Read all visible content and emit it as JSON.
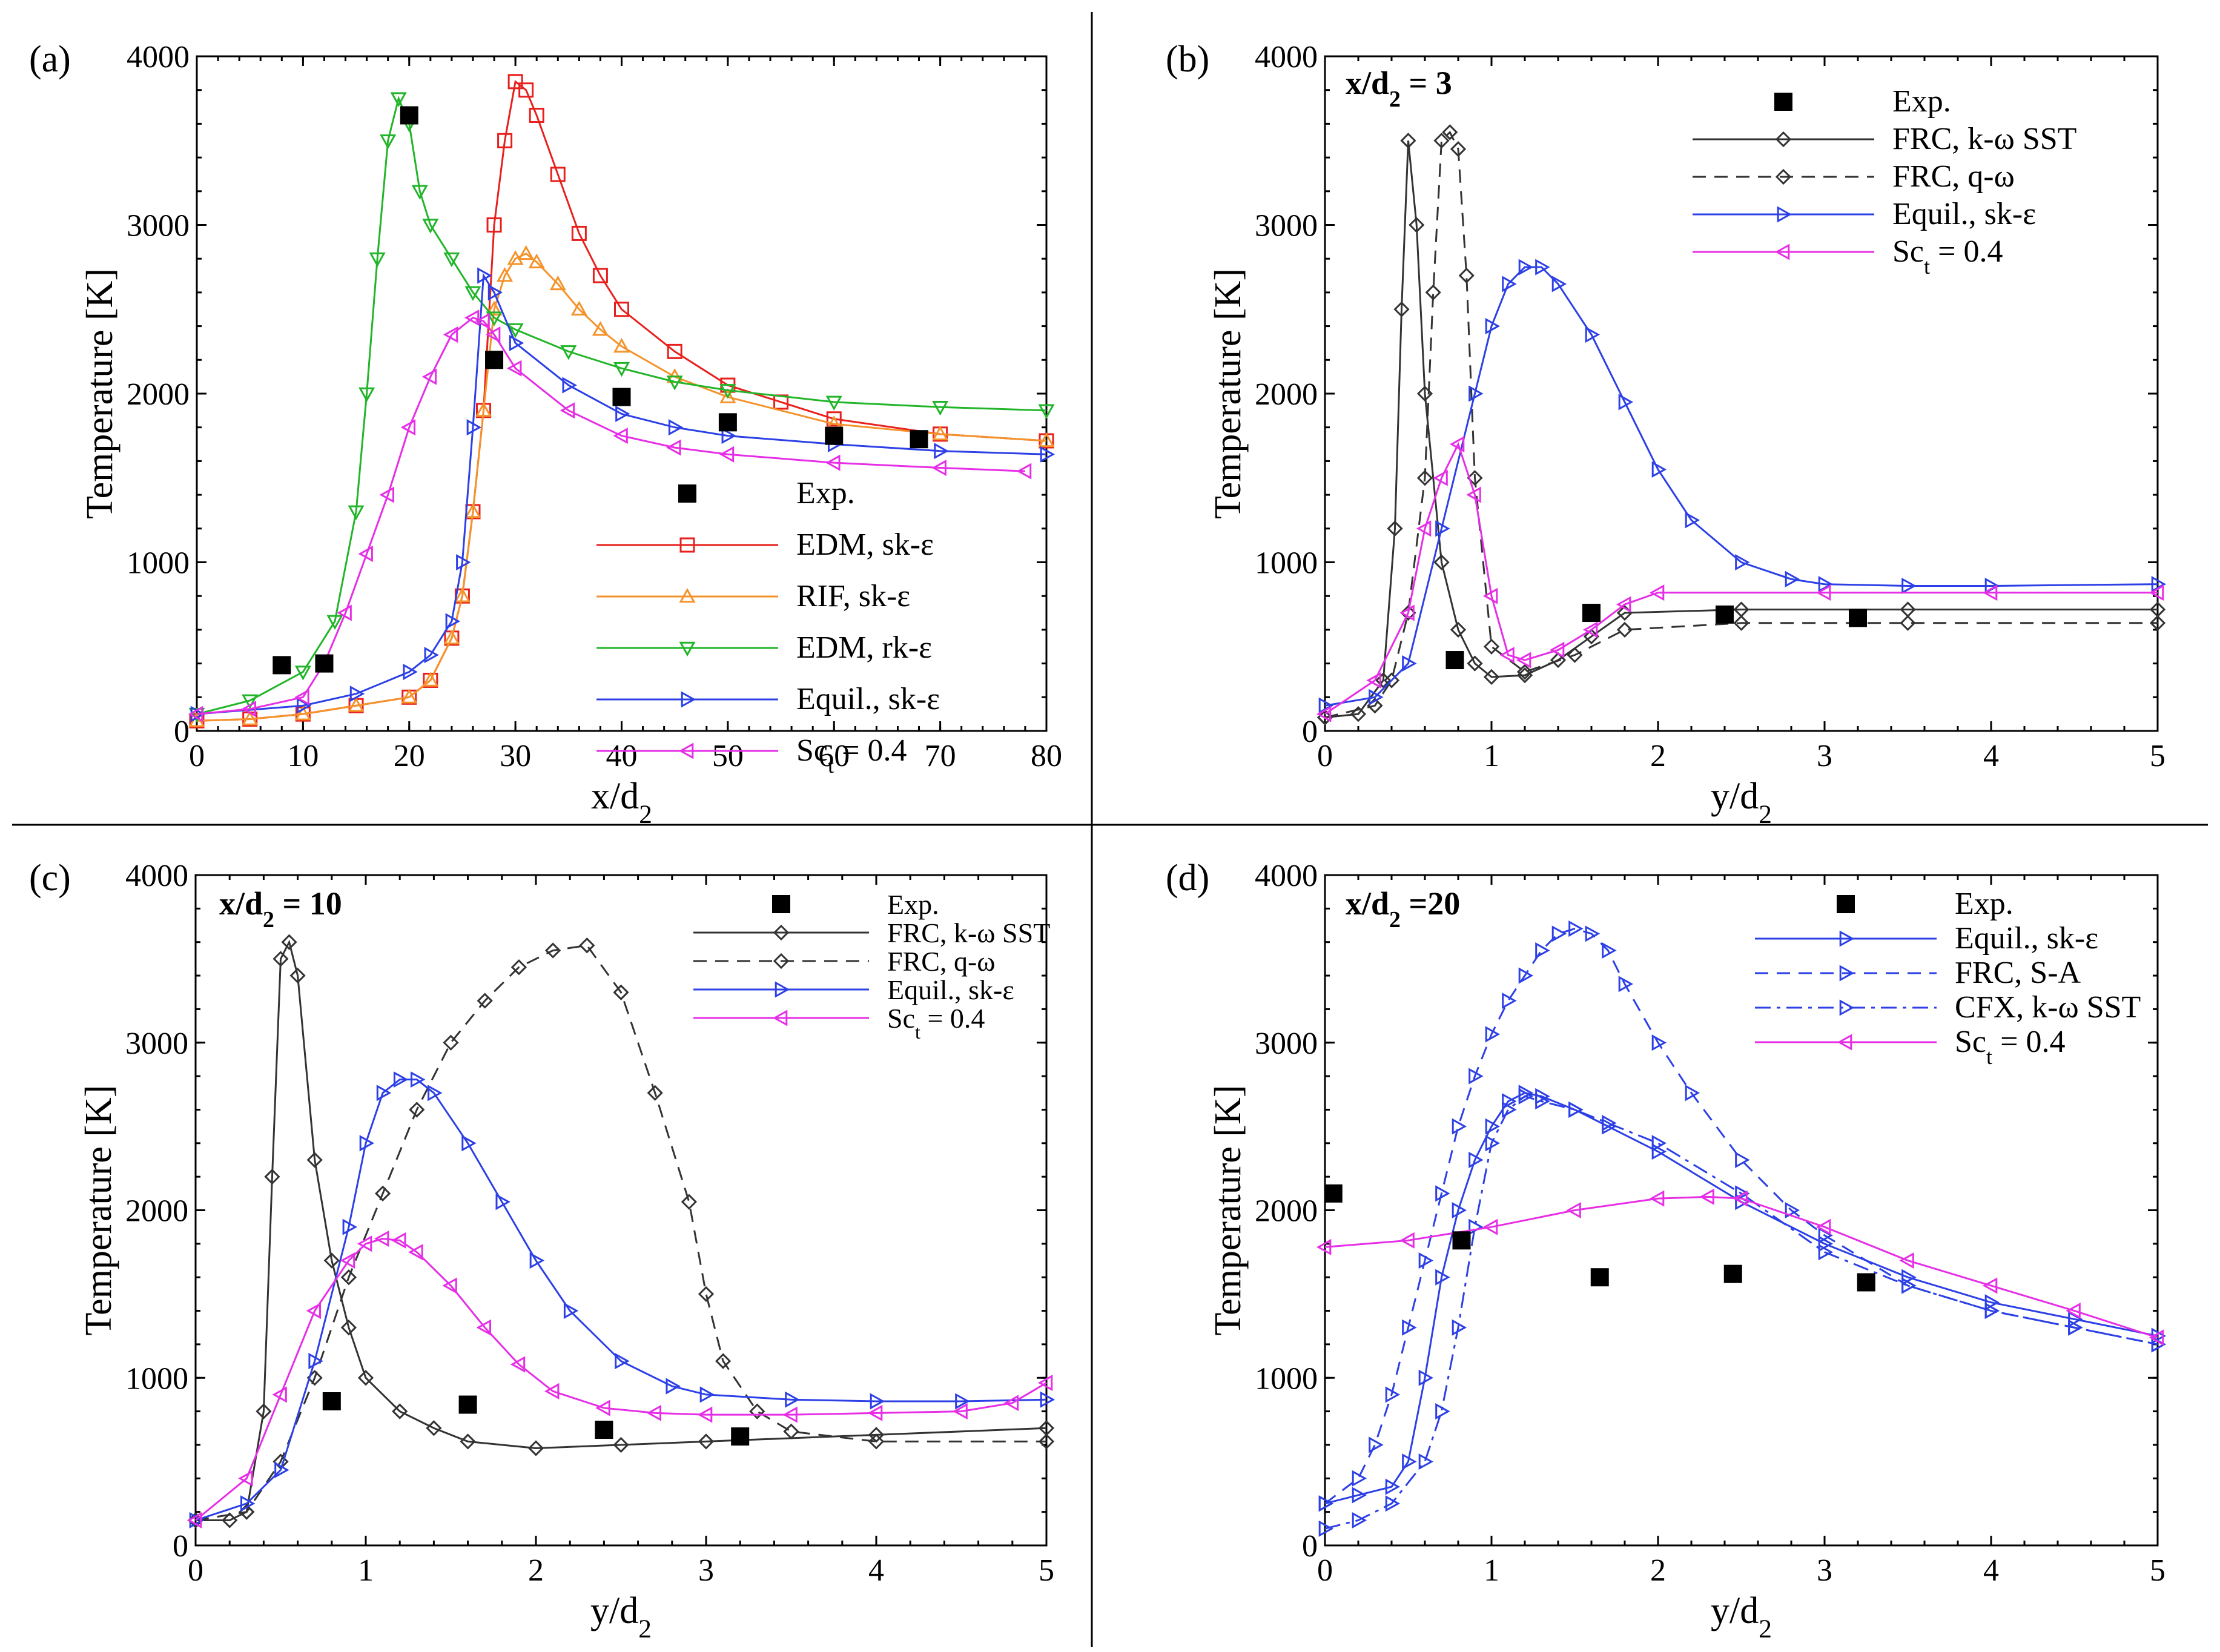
{
  "chart_data": [
    {
      "type": "line",
      "panel_label": "(a)",
      "annotation": "",
      "xlabel": "x/d",
      "xlabel_sub": "2",
      "ylabel": "Temperature [K]",
      "xlim": [
        0,
        80
      ],
      "ylim": [
        0,
        4000
      ],
      "xticks": [
        0,
        10,
        20,
        30,
        40,
        50,
        60,
        70,
        80
      ],
      "yticks": [
        0,
        1000,
        2000,
        3000,
        4000
      ],
      "legend_position": "bottom-right",
      "exp": {
        "name": "Exp.",
        "x": [
          8,
          12,
          20,
          28,
          40,
          50,
          60,
          68
        ],
        "y": [
          390,
          400,
          3650,
          2200,
          1980,
          1830,
          1750,
          1730
        ]
      },
      "series": [
        {
          "name": "EDM, sk-ε",
          "color": "#e8201d",
          "marker": "square",
          "dash": "solid",
          "x": [
            0,
            5,
            10,
            15,
            20,
            22,
            24,
            25,
            26,
            27,
            28,
            29,
            30,
            31,
            32,
            34,
            36,
            38,
            40,
            45,
            50,
            55,
            60,
            70,
            80
          ],
          "y": [
            60,
            70,
            100,
            150,
            200,
            300,
            550,
            800,
            1300,
            1900,
            3000,
            3500,
            3850,
            3800,
            3650,
            3300,
            2950,
            2700,
            2500,
            2250,
            2050,
            1950,
            1850,
            1760,
            1720
          ]
        },
        {
          "name": "RIF, sk-ε",
          "color": "#f5932b",
          "marker": "triangle-up",
          "dash": "solid",
          "x": [
            0,
            5,
            10,
            15,
            20,
            22,
            24,
            25,
            26,
            27,
            28,
            29,
            30,
            31,
            32,
            34,
            36,
            38,
            40,
            45,
            50,
            60,
            70,
            80
          ],
          "y": [
            60,
            70,
            100,
            150,
            200,
            300,
            550,
            800,
            1300,
            1900,
            2500,
            2700,
            2800,
            2830,
            2780,
            2650,
            2500,
            2380,
            2280,
            2100,
            1980,
            1820,
            1760,
            1720
          ]
        },
        {
          "name": "EDM, rk-ε",
          "color": "#22b52a",
          "marker": "triangle-down",
          "dash": "solid",
          "x": [
            0,
            5,
            10,
            13,
            15,
            16,
            17,
            18,
            19,
            20,
            21,
            22,
            24,
            26,
            28,
            30,
            35,
            40,
            45,
            50,
            60,
            70,
            80
          ],
          "y": [
            100,
            180,
            350,
            650,
            1300,
            2000,
            2800,
            3500,
            3750,
            3600,
            3200,
            3000,
            2800,
            2600,
            2450,
            2380,
            2250,
            2150,
            2070,
            2020,
            1950,
            1920,
            1900
          ]
        },
        {
          "name": "Equil., sk-ε",
          "color": "#2c40e6",
          "marker": "triangle-right",
          "dash": "solid",
          "x": [
            0,
            10,
            15,
            20,
            22,
            24,
            25,
            26,
            27,
            28,
            30,
            35,
            40,
            45,
            50,
            60,
            70,
            80
          ],
          "y": [
            100,
            150,
            220,
            350,
            450,
            650,
            1000,
            1800,
            2700,
            2600,
            2300,
            2050,
            1880,
            1800,
            1750,
            1700,
            1660,
            1640
          ]
        },
        {
          "name": "Sc_t = 0.4",
          "color": "#e62ee6",
          "marker": "triangle-left",
          "dash": "solid",
          "x": [
            0,
            5,
            10,
            12,
            14,
            16,
            18,
            20,
            22,
            24,
            26,
            27,
            28,
            30,
            35,
            40,
            45,
            50,
            60,
            70,
            78
          ],
          "y": [
            100,
            130,
            200,
            400,
            700,
            1050,
            1400,
            1800,
            2100,
            2350,
            2450,
            2430,
            2350,
            2150,
            1900,
            1750,
            1680,
            1640,
            1590,
            1560,
            1540
          ]
        }
      ]
    },
    {
      "type": "line",
      "panel_label": "(b)",
      "annotation": "x/d",
      "annotation_sub": "2",
      "annotation_tail": " = 3",
      "xlabel": "y/d",
      "xlabel_sub": "2",
      "ylabel": "Temperature [K]",
      "xlim": [
        0,
        5
      ],
      "ylim": [
        0,
        4000
      ],
      "xticks": [
        0,
        1,
        2,
        3,
        4,
        5
      ],
      "yticks": [
        0,
        1000,
        2000,
        3000,
        4000
      ],
      "legend_position": "top-right",
      "exp": {
        "name": "Exp.",
        "x": [
          0.78,
          1.6,
          2.4,
          3.2
        ],
        "y": [
          420,
          700,
          690,
          670
        ]
      },
      "series": [
        {
          "name": "FRC, k-ω SST",
          "color": "#333333",
          "marker": "diamond",
          "dash": "solid",
          "x": [
            0,
            0.2,
            0.35,
            0.42,
            0.46,
            0.5,
            0.55,
            0.6,
            0.7,
            0.8,
            0.9,
            1.0,
            1.2,
            1.4,
            1.6,
            1.8,
            2.5,
            3.5,
            5
          ],
          "y": [
            80,
            100,
            300,
            1200,
            2500,
            3500,
            3000,
            2000,
            1000,
            600,
            400,
            320,
            330,
            420,
            560,
            700,
            720,
            720,
            720
          ]
        },
        {
          "name": "FRC, q-ω",
          "color": "#333333",
          "marker": "diamond",
          "dash": "dash",
          "x": [
            0,
            0.3,
            0.4,
            0.5,
            0.6,
            0.65,
            0.7,
            0.75,
            0.8,
            0.85,
            0.9,
            1.0,
            1.2,
            1.5,
            1.8,
            2.5,
            3.5,
            5
          ],
          "y": [
            80,
            150,
            300,
            700,
            1500,
            2600,
            3500,
            3550,
            3450,
            2700,
            1500,
            500,
            350,
            450,
            600,
            640,
            640,
            640
          ]
        },
        {
          "name": "Equil., sk-ε",
          "color": "#2c40e6",
          "marker": "triangle-right",
          "dash": "solid",
          "x": [
            0,
            0.3,
            0.5,
            0.7,
            0.9,
            1.0,
            1.1,
            1.2,
            1.3,
            1.4,
            1.6,
            1.8,
            2.0,
            2.2,
            2.5,
            2.8,
            3.0,
            3.5,
            4.0,
            5.0
          ],
          "y": [
            150,
            200,
            400,
            1200,
            2000,
            2400,
            2650,
            2750,
            2750,
            2650,
            2350,
            1950,
            1550,
            1250,
            1000,
            900,
            870,
            860,
            860,
            870
          ]
        },
        {
          "name": "Sc_t = 0.4",
          "color": "#e62ee6",
          "marker": "triangle-left",
          "dash": "solid",
          "x": [
            0,
            0.3,
            0.5,
            0.6,
            0.7,
            0.8,
            0.9,
            1.0,
            1.1,
            1.2,
            1.4,
            1.6,
            1.8,
            2.0,
            3.0,
            4.0,
            5.0
          ],
          "y": [
            100,
            300,
            700,
            1200,
            1500,
            1700,
            1400,
            800,
            450,
            420,
            480,
            600,
            750,
            820,
            820,
            820,
            820
          ]
        }
      ]
    },
    {
      "type": "line",
      "panel_label": "(c)",
      "annotation": "x/d",
      "annotation_sub": "2",
      "annotation_tail": " = 10",
      "xlabel": "y/d",
      "xlabel_sub": "2",
      "ylabel": "Temperature [K]",
      "xlim": [
        0,
        5
      ],
      "ylim": [
        0,
        4000
      ],
      "xticks": [
        0,
        1,
        2,
        3,
        4,
        5
      ],
      "yticks": [
        0,
        1000,
        2000,
        3000,
        4000
      ],
      "legend_position": "top-right",
      "exp": {
        "name": "Exp.",
        "x": [
          0.8,
          1.6,
          2.4,
          3.2
        ],
        "y": [
          860,
          840,
          690,
          650
        ]
      },
      "series": [
        {
          "name": "FRC, k-ω SST",
          "color": "#333333",
          "marker": "diamond",
          "dash": "solid",
          "x": [
            0,
            0.2,
            0.3,
            0.4,
            0.45,
            0.5,
            0.55,
            0.6,
            0.7,
            0.8,
            0.9,
            1.0,
            1.2,
            1.4,
            1.6,
            2.0,
            2.5,
            3.0,
            4.0,
            5.0
          ],
          "y": [
            150,
            150,
            200,
            800,
            2200,
            3500,
            3600,
            3400,
            2300,
            1700,
            1300,
            1000,
            800,
            700,
            620,
            580,
            600,
            620,
            660,
            700
          ]
        },
        {
          "name": "FRC, q-ω",
          "color": "#333333",
          "marker": "diamond",
          "dash": "dash",
          "x": [
            0,
            0.3,
            0.5,
            0.7,
            0.9,
            1.1,
            1.3,
            1.5,
            1.7,
            1.9,
            2.1,
            2.3,
            2.5,
            2.7,
            2.9,
            3.0,
            3.1,
            3.3,
            3.5,
            4.0,
            5.0
          ],
          "y": [
            150,
            200,
            500,
            1000,
            1600,
            2100,
            2600,
            3000,
            3250,
            3450,
            3550,
            3580,
            3300,
            2700,
            2050,
            1500,
            1100,
            800,
            680,
            620,
            620
          ]
        },
        {
          "name": "Equil., sk-ε",
          "color": "#2c40e6",
          "marker": "triangle-right",
          "dash": "solid",
          "x": [
            0,
            0.3,
            0.5,
            0.7,
            0.9,
            1.0,
            1.1,
            1.2,
            1.3,
            1.4,
            1.6,
            1.8,
            2.0,
            2.2,
            2.5,
            2.8,
            3.0,
            3.5,
            4.0,
            4.5,
            5.0
          ],
          "y": [
            150,
            250,
            450,
            1100,
            1900,
            2400,
            2700,
            2780,
            2780,
            2700,
            2400,
            2050,
            1700,
            1400,
            1100,
            950,
            900,
            870,
            860,
            860,
            870
          ]
        },
        {
          "name": "Sc_t = 0.4",
          "color": "#e62ee6",
          "marker": "triangle-left",
          "dash": "solid",
          "x": [
            0,
            0.3,
            0.5,
            0.7,
            0.9,
            1.0,
            1.1,
            1.2,
            1.3,
            1.5,
            1.7,
            1.9,
            2.1,
            2.4,
            2.7,
            3.0,
            3.5,
            4.0,
            4.5,
            4.8,
            5.0
          ],
          "y": [
            150,
            400,
            900,
            1400,
            1700,
            1800,
            1830,
            1820,
            1750,
            1550,
            1300,
            1080,
            920,
            820,
            790,
            780,
            780,
            790,
            800,
            850,
            970
          ]
        }
      ]
    },
    {
      "type": "line",
      "panel_label": "(d)",
      "annotation": "x/d",
      "annotation_sub": "2",
      "annotation_tail": " =20",
      "xlabel": "y/d",
      "xlabel_sub": "2",
      "ylabel": "Temperature [K]",
      "xlim": [
        0,
        5
      ],
      "ylim": [
        0,
        4000
      ],
      "xticks": [
        0,
        1,
        2,
        3,
        4,
        5
      ],
      "yticks": [
        0,
        1000,
        2000,
        3000,
        4000
      ],
      "legend_position": "top-right",
      "exp": {
        "name": "Exp.",
        "x": [
          0.05,
          0.82,
          1.65,
          2.45,
          3.25
        ],
        "y": [
          2100,
          1820,
          1600,
          1620,
          1570
        ]
      },
      "series": [
        {
          "name": "Equil., sk-ε",
          "color": "#2c40e6",
          "marker": "triangle-right",
          "dash": "solid",
          "x": [
            0,
            0.2,
            0.4,
            0.5,
            0.6,
            0.7,
            0.8,
            0.9,
            1.0,
            1.1,
            1.2,
            1.3,
            1.5,
            1.7,
            2.0,
            2.5,
            3.0,
            3.5,
            4.0,
            4.5,
            5.0
          ],
          "y": [
            250,
            300,
            350,
            500,
            1000,
            1600,
            2000,
            2300,
            2500,
            2650,
            2700,
            2680,
            2600,
            2500,
            2350,
            2050,
            1800,
            1600,
            1450,
            1350,
            1250
          ]
        },
        {
          "name": "FRC, S-A",
          "color": "#2c40e6",
          "marker": "triangle-right",
          "dash": "dash",
          "x": [
            0,
            0.2,
            0.3,
            0.4,
            0.5,
            0.6,
            0.7,
            0.8,
            0.9,
            1.0,
            1.1,
            1.2,
            1.3,
            1.4,
            1.5,
            1.6,
            1.7,
            1.8,
            2.0,
            2.2,
            2.5,
            2.8,
            3.0,
            3.5,
            4.0,
            4.5,
            5.0
          ],
          "y": [
            250,
            400,
            600,
            900,
            1300,
            1700,
            2100,
            2500,
            2800,
            3050,
            3250,
            3400,
            3550,
            3650,
            3680,
            3650,
            3550,
            3350,
            3000,
            2700,
            2300,
            2000,
            1850,
            1550,
            1400,
            1300,
            1200
          ]
        },
        {
          "name": "CFX, k-ω SST",
          "color": "#2c40e6",
          "marker": "triangle-right",
          "dash": "dashdot",
          "x": [
            0,
            0.2,
            0.4,
            0.6,
            0.7,
            0.8,
            0.9,
            1.0,
            1.1,
            1.2,
            1.3,
            1.5,
            1.7,
            2.0,
            2.5,
            3.0,
            3.5,
            4.0,
            4.5,
            5.0
          ],
          "y": [
            100,
            150,
            250,
            500,
            800,
            1300,
            1900,
            2400,
            2600,
            2680,
            2650,
            2600,
            2520,
            2400,
            2100,
            1750,
            1550,
            1400,
            1300,
            1200
          ]
        },
        {
          "name": "Sc_t = 0.4",
          "color": "#e62ee6",
          "marker": "triangle-left",
          "dash": "solid",
          "x": [
            0,
            0.5,
            1.0,
            1.5,
            2.0,
            2.3,
            2.5,
            3.0,
            3.5,
            4.0,
            4.5,
            5.0
          ],
          "y": [
            1780,
            1820,
            1900,
            2000,
            2070,
            2080,
            2070,
            1900,
            1700,
            1550,
            1400,
            1240
          ]
        }
      ]
    }
  ]
}
